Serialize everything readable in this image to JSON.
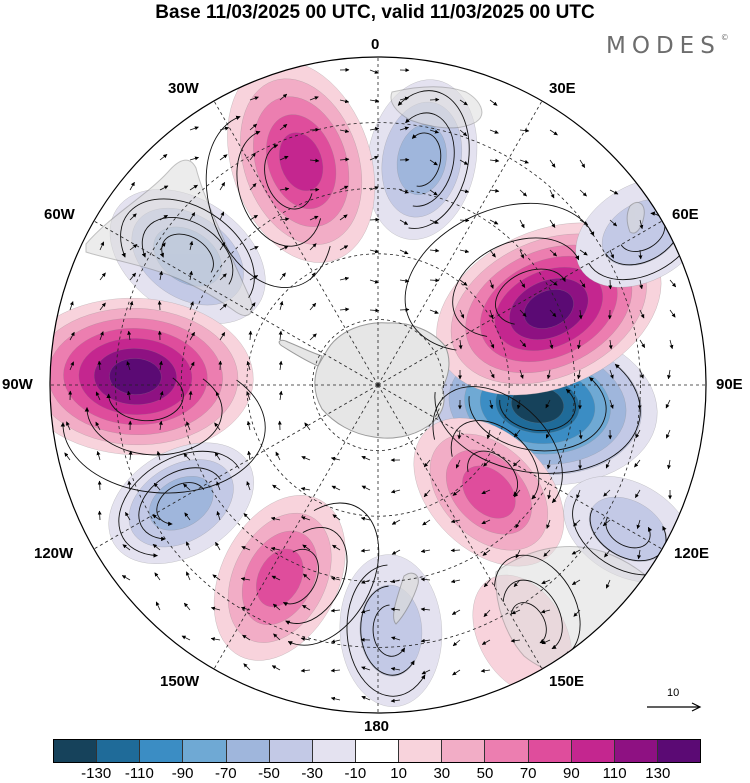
{
  "title": "Base 11/03/2025 00 UTC, valid 11/03/2025 00 UTC",
  "brand": "MODES",
  "brand_mark": "©",
  "longitude_labels": {
    "lon_0": "0",
    "lon_30e": "30E",
    "lon_60e": "60E",
    "lon_90e": "90E",
    "lon_120e": "120E",
    "lon_150e": "150E",
    "lon_180": "180",
    "lon_150w": "150W",
    "lon_120w": "120W",
    "lon_90w": "90W",
    "lon_60w": "60W",
    "lon_30w": "30W"
  },
  "reference_vector_label": "10",
  "colorbar": {
    "colors": [
      "#16425b",
      "#1f6b99",
      "#3b8dc4",
      "#6fa9d4",
      "#9fb6dc",
      "#c3c9e6",
      "#e4e2f0",
      "#ffffff",
      "#f8d3dc",
      "#f2adc6",
      "#ec7eb0",
      "#df4d9c",
      "#c4268f",
      "#8e1182",
      "#5b0a74"
    ],
    "tick_labels": [
      "-130",
      "-110",
      "-90",
      "-70",
      "-50",
      "-30",
      "-10",
      "10",
      "30",
      "50",
      "70",
      "90",
      "110",
      "130"
    ]
  },
  "anomaly_centers": [
    {
      "lon": 97,
      "lat_distance": 0.49,
      "value": -145
    },
    {
      "lon": 66,
      "lat_distance": 0.57,
      "value": 135
    },
    {
      "lon": 134,
      "lat_distance": 0.47,
      "value": 70
    },
    {
      "lon": 11,
      "lat_distance": 0.7,
      "value": -55
    },
    {
      "lon": -19,
      "lat_distance": 0.72,
      "value": 105
    },
    {
      "lon": -56,
      "lat_distance": 0.7,
      "value": -65
    },
    {
      "lon": -88,
      "lat_distance": 0.74,
      "value": 135
    },
    {
      "lon": -121,
      "lat_distance": 0.7,
      "value": -50
    },
    {
      "lon": -153,
      "lat_distance": 0.66,
      "value": 70
    },
    {
      "lon": 177,
      "lat_distance": 0.75,
      "value": -45
    },
    {
      "lon": 60,
      "lat_distance": 0.93,
      "value": -35
    },
    {
      "lon": 120,
      "lat_distance": 0.88,
      "value": -30
    },
    {
      "lon": 150,
      "lat_distance": 0.88,
      "value": 20
    }
  ]
}
